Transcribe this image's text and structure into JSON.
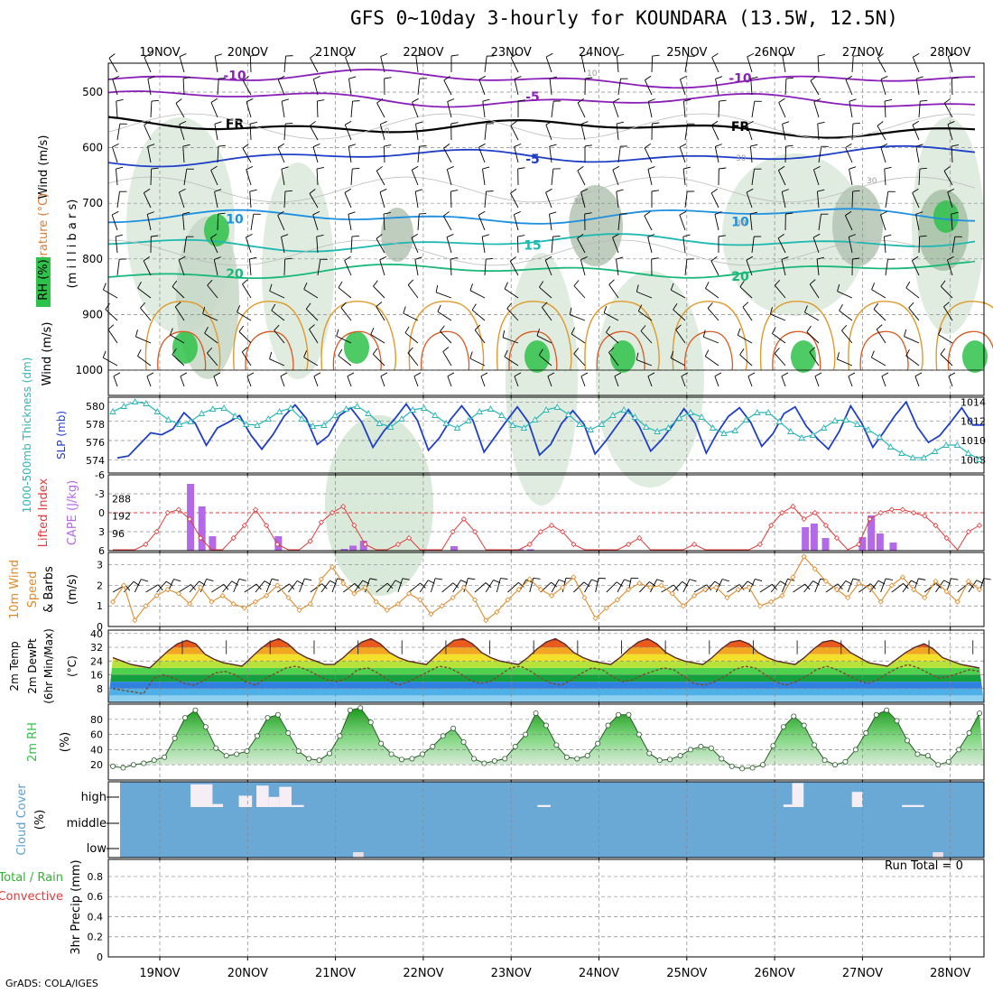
{
  "title": "GFS 0~10day 3-hourly for KOUNDARA (13.5W, 12.5N)",
  "credit": "GrADS: COLA/IGES",
  "days": [
    "19NOV",
    "20NOV",
    "21NOV",
    "22NOV",
    "23NOV",
    "24NOV",
    "25NOV",
    "26NOV",
    "27NOV",
    "28NOV"
  ],
  "colors": {
    "rh": "#2fc24a",
    "slp": "#1f3fc8",
    "thk": "#2ab5b8",
    "cape": "#b469e8",
    "li": "#e03a3a",
    "wind": "#e08a2a",
    "cloud": "#6aa9d6",
    "precip_total": "#33b233",
    "precip_conv": "#e03a3a",
    "temp_text": "#e07a30",
    "frz": "#000000"
  },
  "panels": {
    "upper": {
      "ylabels": [
        "Wind (m/s)",
        "Temperature (°C)",
        "RH (%)",
        "(m i l l i b a r s)"
      ],
      "levels": [
        500,
        600,
        700,
        800,
        900,
        1000
      ],
      "contours": [
        {
          "label": "-10",
          "color": "#8a1fb8",
          "level": 470,
          "type": "temp"
        },
        {
          "label": "-5",
          "color": "#8a1fb8",
          "level": 508,
          "type": "temp"
        },
        {
          "label": "FR",
          "color": "#000000",
          "level": 557,
          "type": "temp"
        },
        {
          "label": "-5",
          "color": "#1f3fc8",
          "level": 620,
          "type": "temp"
        },
        {
          "label": "10",
          "color": "#1e90e0",
          "level": 728,
          "type": "temp"
        },
        {
          "label": "15",
          "color": "#1fb8b0",
          "level": 775,
          "type": "temp"
        },
        {
          "label": "20",
          "color": "#19b87a",
          "level": 826,
          "type": "temp"
        }
      ],
      "rh_labels": [
        "10",
        "10",
        "30",
        "30",
        "30",
        "30"
      ]
    },
    "thickness": {
      "left_label": "1000-500mb Thickness (dm)",
      "right_label": "SLP (mb)",
      "left_ticks": [
        574,
        576,
        578,
        580
      ],
      "right_ticks": [
        1008,
        1010,
        1012,
        1014
      ],
      "slp_series": {
        "name": "SLP",
        "values": [
          1008.2,
          1008.4,
          1009.6,
          1010.8,
          1010.6,
          1011.2,
          1012.9,
          1011.8,
          1009.5,
          1011.3,
          1011.9,
          1012.6,
          1010.6,
          1009.1,
          1010.6,
          1012.5,
          1013.7,
          1012.3,
          1009.6,
          1010.5,
          1012.6,
          1013.4,
          1011.9,
          1009.3,
          1011.0,
          1012.3,
          1013.8,
          1012.1,
          1009.0,
          1010.3,
          1012.2,
          1013.6,
          1012.1,
          1008.8,
          1010.4,
          1012.0,
          1013.5,
          1011.9,
          1008.5,
          1009.6,
          1011.8,
          1013.1,
          1011.7,
          1008.6,
          1010.0,
          1011.6,
          1013.2,
          1011.4,
          1008.9,
          1010.1,
          1011.6,
          1013.3,
          1011.8,
          1008.7,
          1010.8,
          1012.5,
          1013.4,
          1011.9,
          1009.4,
          1010.7,
          1012.8,
          1013.5,
          1011.5,
          1010.2,
          1009.1,
          1011.0,
          1013.6,
          1011.8,
          1009.3,
          1010.9,
          1012.6,
          1014.0,
          1011.4,
          1009.8,
          1010.5,
          1011.9,
          1013.4,
          1011.6,
          1011.6
        ]
      },
      "thk_series": {
        "name": "Thickness",
        "values": [
          579.4,
          580.0,
          580.5,
          580.3,
          579.4,
          578.5,
          578.0,
          578.3,
          579.2,
          579.7,
          579.8,
          578.9,
          578.0,
          577.9,
          578.6,
          579.4,
          579.8,
          578.6,
          577.8,
          577.9,
          579.0,
          579.7,
          580.0,
          579.2,
          578.1,
          577.7,
          578.6,
          579.6,
          579.8,
          579.0,
          578.1,
          577.6,
          578.4,
          579.4,
          579.7,
          579.0,
          577.9,
          577.6,
          578.5,
          579.6,
          579.9,
          579.1,
          578.0,
          577.4,
          578.0,
          579.0,
          579.6,
          578.8,
          577.7,
          577.2,
          577.6,
          578.7,
          579.3,
          578.8,
          577.6,
          577.0,
          577.3,
          578.5,
          579.3,
          579.3,
          578.3,
          577.2,
          576.5,
          576.8,
          577.6,
          578.4,
          578.5,
          578.0,
          577.4,
          576.6,
          575.5,
          574.8,
          574.3,
          574.3,
          575.0,
          575.7,
          575.7,
          574.8,
          574.1
        ]
      }
    },
    "cape": {
      "left_label": "Lifted Index",
      "right_label": "CAPE (J/kg)",
      "left_ticks": [
        "-6",
        "-3",
        "0",
        "3",
        "6"
      ],
      "right_ticks": [
        "288",
        "192",
        "96"
      ],
      "cape_bars": [
        {
          "day": 0.35,
          "value": 370
        },
        {
          "day": 0.48,
          "value": 245
        },
        {
          "day": 0.6,
          "value": 80
        },
        {
          "day": 1.35,
          "value": 80
        },
        {
          "day": 2.1,
          "value": 10
        },
        {
          "day": 2.2,
          "value": 28
        },
        {
          "day": 2.32,
          "value": 55
        },
        {
          "day": 3.35,
          "value": 25
        },
        {
          "day": 4.1,
          "value": 8
        },
        {
          "day": 4.22,
          "value": 8
        },
        {
          "day": 7.35,
          "value": 130
        },
        {
          "day": 7.45,
          "value": 150
        },
        {
          "day": 7.58,
          "value": 70
        },
        {
          "day": 8.0,
          "value": 75
        },
        {
          "day": 8.1,
          "value": 195
        },
        {
          "day": 8.2,
          "value": 95
        },
        {
          "day": 8.35,
          "value": 45
        }
      ],
      "li_series": {
        "name": "Lifted Index",
        "values": [
          6.5,
          7,
          6,
          5,
          3,
          0,
          -0.5,
          1,
          4,
          6.2,
          6,
          4,
          2,
          -0.5,
          2,
          5,
          6.5,
          6.3,
          4.5,
          1.5,
          0,
          -1,
          2,
          5,
          6.5,
          6.5,
          5,
          4,
          6.2,
          6.5,
          6,
          3,
          1,
          3,
          6,
          6.5,
          6.5,
          6,
          5,
          3,
          2,
          3,
          5,
          6,
          6.5,
          6.5,
          6.5,
          5,
          4,
          6.5,
          6.5,
          6.5,
          6,
          5,
          6,
          6,
          6.2,
          6.5,
          6.5,
          5,
          2,
          0,
          -1,
          1,
          0,
          2,
          4,
          6,
          5,
          1,
          0,
          -0.5,
          -0.5,
          0,
          0.5,
          2,
          4,
          6,
          3,
          2
        ]
      }
    },
    "wind10m": {
      "left_label": "10m Wind",
      "mid_label": "Speed & Barbs",
      "right_label": "(m/s)",
      "ticks": [
        "3",
        "2",
        "1",
        "0"
      ],
      "speed_series": {
        "name": "Speed",
        "values": [
          1.2,
          2.0,
          0.3,
          1.0,
          1.5,
          1.8,
          1.6,
          1.1,
          1.9,
          1.2,
          1.5,
          1.1,
          0.9,
          1.2,
          1.5,
          2.0,
          1.4,
          0.8,
          1.1,
          2.3,
          2.9,
          2.1,
          1.6,
          1.9,
          1.2,
          0.8,
          1.1,
          1.6,
          1.3,
          0.6,
          1.0,
          1.4,
          1.9,
          1.3,
          0.3,
          0.7,
          1.3,
          1.8,
          2.3,
          1.8,
          1.5,
          1.9,
          2.4,
          1.4,
          0.4,
          0.9,
          1.3,
          1.8,
          2.1,
          1.9,
          2.0,
          1.6,
          1.0,
          1.5,
          1.8,
          1.9,
          1.4,
          1.8,
          1.9,
          1.0,
          1.2,
          1.5,
          2.4,
          3.4,
          2.8,
          2.2,
          1.8,
          1.4,
          2.1,
          1.9,
          1.2,
          2.0,
          2.4,
          1.8,
          1.4,
          2.2,
          1.7,
          1.2,
          2.2,
          1.8
        ]
      }
    },
    "temp2m": {
      "labels": [
        "2m Temp",
        "2m DewPt",
        "(6hr Min/Max)",
        "(°C)"
      ],
      "ticks": [
        "40",
        "32",
        "24",
        "16",
        "8"
      ],
      "temp_series": {
        "name": "2m Temp",
        "values": [
          26,
          24,
          22,
          21,
          20,
          25,
          30,
          34,
          36,
          34,
          28,
          25,
          23,
          22,
          21,
          26,
          31,
          35,
          37,
          34,
          29,
          26,
          24,
          22,
          22,
          26,
          31,
          35,
          37,
          34,
          29,
          26,
          24,
          23,
          22,
          27,
          32,
          36,
          37,
          34,
          29,
          26,
          24,
          23,
          22,
          26,
          31,
          35,
          37,
          34,
          29,
          26,
          24,
          23,
          22,
          26,
          31,
          35,
          37,
          34,
          29,
          26,
          24,
          23,
          22,
          26,
          31,
          35,
          36,
          34,
          29,
          26,
          24,
          23,
          22,
          26,
          31,
          35,
          36,
          34,
          29,
          26,
          23,
          22,
          21,
          25,
          29,
          32,
          34,
          31,
          26,
          24,
          22,
          21,
          20
        ]
      },
      "dewpt_series": {
        "name": "2m DewPt",
        "values": [
          8,
          7,
          6,
          5,
          14,
          16,
          14,
          11,
          10,
          13,
          17,
          18,
          16,
          12,
          10,
          14,
          17,
          20,
          21,
          19,
          16,
          13,
          12,
          14,
          19,
          20,
          17,
          13,
          10,
          12,
          15,
          18,
          21,
          20,
          17,
          13,
          11,
          12,
          16,
          20,
          21,
          18,
          14,
          11,
          10,
          13,
          17,
          20,
          19,
          15,
          12,
          13,
          16,
          18,
          20,
          19,
          15,
          11,
          10,
          12,
          15,
          19,
          21,
          20,
          16,
          12,
          10,
          12,
          15,
          19,
          21,
          19,
          16,
          13,
          11,
          13,
          17,
          20,
          22,
          20,
          17,
          14,
          15,
          17,
          19,
          18
        ]
      }
    },
    "rh2m": {
      "labels": [
        "2m RH",
        "(%)"
      ],
      "ticks": [
        "80",
        "60",
        "40",
        "20"
      ],
      "rh_series": {
        "name": "2m RH",
        "values": [
          18,
          16,
          20,
          22,
          26,
          30,
          55,
          82,
          92,
          70,
          42,
          32,
          34,
          38,
          58,
          82,
          86,
          62,
          38,
          28,
          26,
          35,
          58,
          92,
          95,
          76,
          48,
          34,
          27,
          28,
          34,
          44,
          58,
          68,
          50,
          28,
          22,
          25,
          28,
          44,
          60,
          88,
          72,
          46,
          30,
          28,
          32,
          48,
          72,
          86,
          86,
          60,
          35,
          26,
          27,
          32,
          40,
          44,
          42,
          28,
          18,
          15,
          16,
          20,
          45,
          70,
          84,
          72,
          46,
          26,
          20,
          24,
          40,
          62,
          86,
          92,
          78,
          52,
          34,
          32,
          20,
          24,
          40,
          62,
          88
        ]
      }
    },
    "cloud": {
      "labels": [
        "Cloud Cover",
        "(%)"
      ],
      "levels": [
        "high",
        "middle",
        "low"
      ],
      "high_blocks": [
        {
          "start": 0.35,
          "end": 0.6,
          "frac": 0.9
        },
        {
          "start": 0.6,
          "end": 0.72,
          "frac": 0.12
        },
        {
          "start": 0.9,
          "end": 1.05,
          "frac": 0.45
        },
        {
          "start": 1.1,
          "end": 1.24,
          "frac": 0.85
        },
        {
          "start": 1.24,
          "end": 1.36,
          "frac": 0.4
        },
        {
          "start": 1.36,
          "end": 1.5,
          "frac": 0.8
        },
        {
          "start": 1.5,
          "end": 1.64,
          "frac": 0.08
        },
        {
          "start": 4.3,
          "end": 4.45,
          "frac": 0.08
        },
        {
          "start": 7.1,
          "end": 7.2,
          "frac": 0.1
        },
        {
          "start": 7.2,
          "end": 7.33,
          "frac": 0.95
        },
        {
          "start": 7.88,
          "end": 8.0,
          "frac": 0.6
        },
        {
          "start": 8.45,
          "end": 8.7,
          "frac": 0.08
        }
      ],
      "low_blocks": [
        {
          "start": 2.2,
          "end": 2.32,
          "frac": 0.6
        },
        {
          "start": 8.8,
          "end": 8.92,
          "frac": 0.6
        }
      ]
    },
    "precip": {
      "labels": [
        "Total / Rain",
        "Convective",
        "3hr Precip (mm)"
      ],
      "ticks": [
        "0.8",
        "0.6",
        "0.4",
        "0.2",
        "0"
      ],
      "run_total": "Run Total = 0"
    }
  }
}
